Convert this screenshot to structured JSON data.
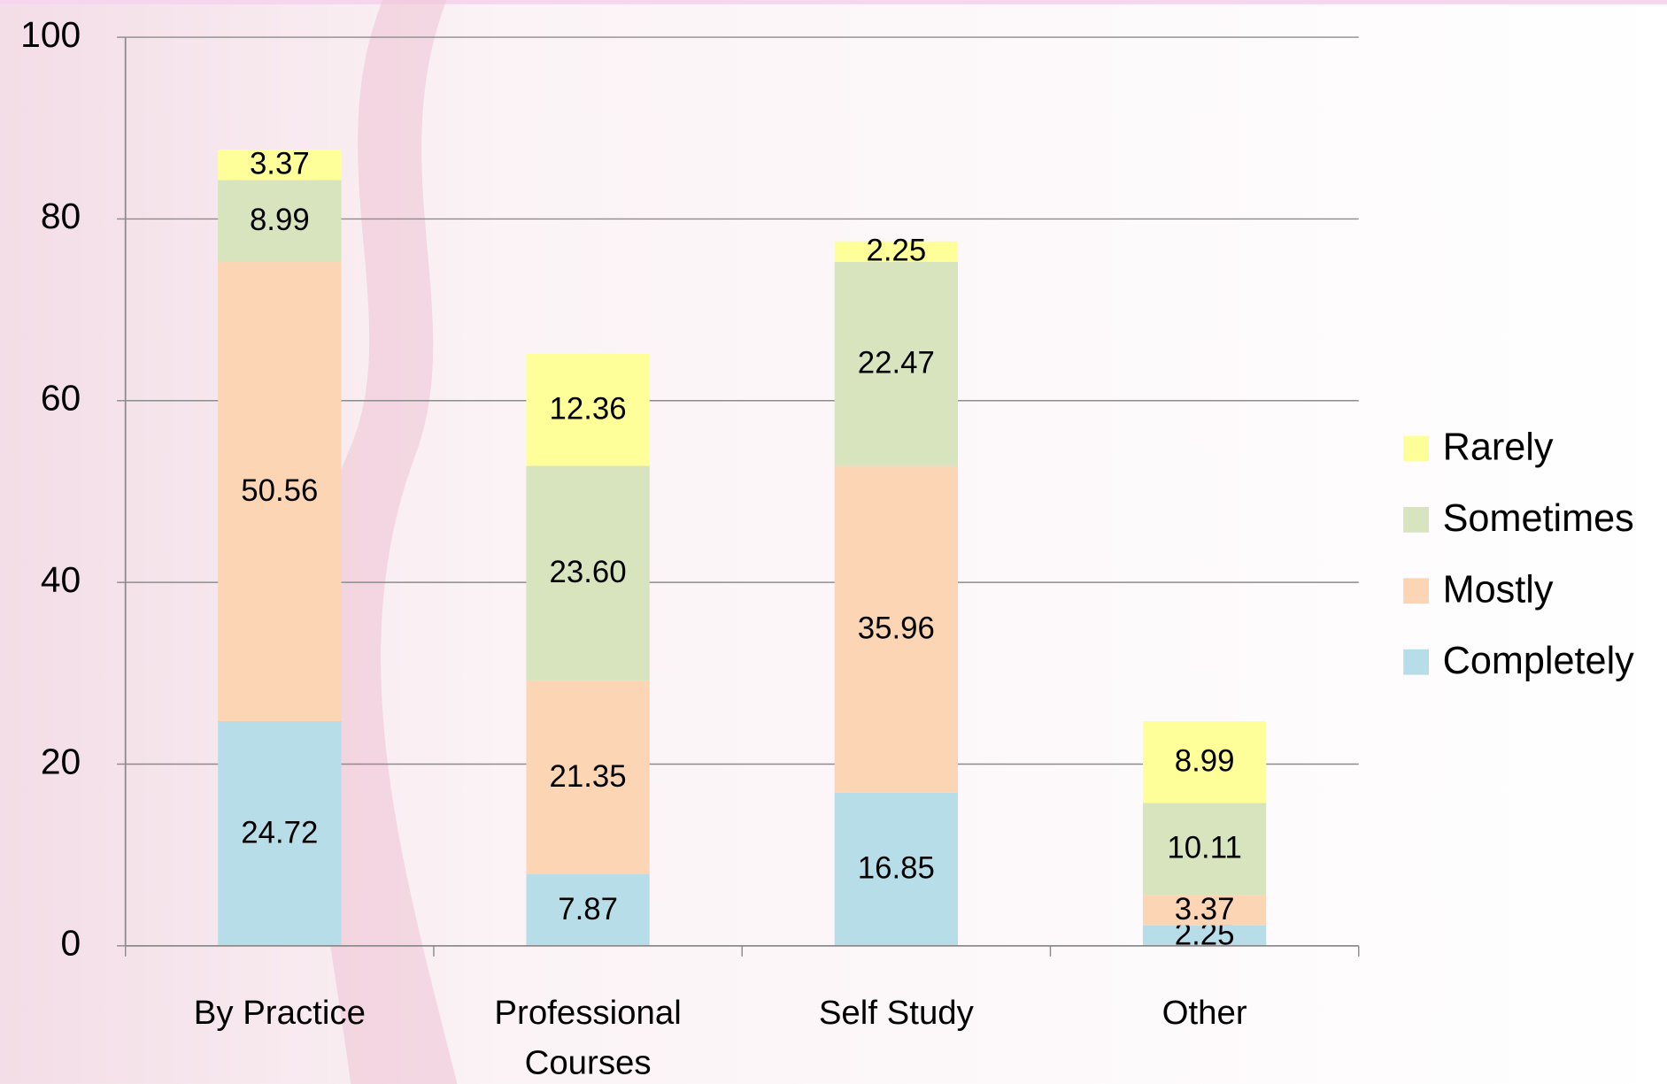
{
  "chart_data": {
    "type": "stacked-bar",
    "categories": [
      "By Practice",
      "Professional Courses",
      "Self Study",
      "Other"
    ],
    "series": [
      {
        "name": "Completely",
        "color": "#b7dee8",
        "values": [
          24.72,
          7.87,
          16.85,
          2.25
        ],
        "value_labels": [
          "24.72",
          "7.87",
          "16.85",
          "2.25"
        ]
      },
      {
        "name": "Mostly",
        "color": "#fcd5b5",
        "values": [
          50.56,
          21.35,
          35.96,
          3.37
        ],
        "value_labels": [
          "50.56",
          "21.35",
          "35.96",
          "3.37"
        ]
      },
      {
        "name": "Sometimes",
        "color": "#d7e4bd",
        "values": [
          8.99,
          23.6,
          22.47,
          10.11
        ],
        "value_labels": [
          "8.99",
          "23.60",
          "22.47",
          "10.11"
        ]
      },
      {
        "name": "Rarely",
        "color": "#ffff99",
        "values": [
          3.37,
          12.36,
          2.25,
          8.99
        ],
        "value_labels": [
          "3.37",
          "12.36",
          "2.25",
          "8.99"
        ]
      }
    ],
    "ylim": [
      0,
      100
    ],
    "yticks": [
      0,
      20,
      40,
      60,
      80,
      100
    ],
    "grid": true,
    "legend": "right"
  }
}
